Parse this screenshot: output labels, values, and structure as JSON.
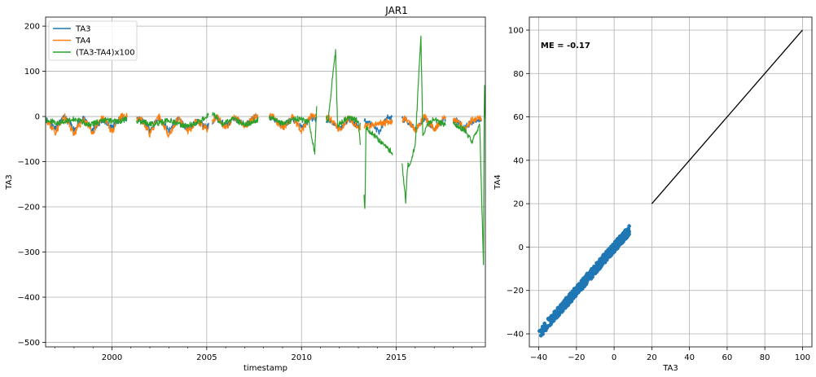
{
  "colors": {
    "ta3": "#1f77b4",
    "ta4": "#ff7f0e",
    "diff": "#2ca02c",
    "line": "#000000",
    "grid": "#b0b0b0"
  },
  "chart_data": [
    {
      "type": "line",
      "title": "JAR1",
      "xlabel": "timestamp",
      "ylabel": "TA3",
      "xlim": [
        1996.5,
        2019.7
      ],
      "ylim": [
        -510,
        220
      ],
      "xticks": [
        2000,
        2005,
        2010,
        2015
      ],
      "xtick_labels": [
        "2000",
        "2005",
        "2010",
        "2015"
      ],
      "yticks": [
        -500,
        -400,
        -300,
        -200,
        -100,
        0,
        100,
        200
      ],
      "ytick_labels": [
        "−500",
        "−400",
        "−300",
        "−200",
        "−100",
        "0",
        "100",
        "200"
      ],
      "grid": true,
      "legend_position": "top-left",
      "segments": [
        [
          1996.5,
          2000.8
        ],
        [
          2001.3,
          2005.1
        ],
        [
          2005.3,
          2007.7
        ],
        [
          2008.3,
          2010.8
        ],
        [
          2011.3,
          2013.1
        ],
        [
          2013.3,
          2014.8
        ],
        [
          2015.3,
          2017.6
        ],
        [
          2018.0,
          2019.7
        ]
      ],
      "series": [
        {
          "name": "TA3",
          "color": "#1f77b4",
          "x": [
            1996.5,
            1997.0,
            1997.5,
            1998.0,
            1998.5,
            1999.0,
            1999.5,
            2000.0,
            2000.5,
            2001.5,
            2002.0,
            2002.5,
            2003.0,
            2003.5,
            2004.0,
            2004.5,
            2005.0,
            2005.5,
            2006.0,
            2006.5,
            2007.0,
            2007.5,
            2008.5,
            2009.0,
            2009.5,
            2010.0,
            2010.5,
            2011.5,
            2012.0,
            2012.5,
            2013.0,
            2013.4,
            2013.8,
            2014.1,
            2014.5,
            2015.5,
            2016.0,
            2016.5,
            2017.0,
            2017.5,
            2018.2,
            2018.6,
            2019.0,
            2019.5
          ],
          "y": [
            -5,
            -25,
            -2,
            -28,
            -5,
            -30,
            -8,
            -24,
            -3,
            -6,
            -30,
            -2,
            -33,
            -5,
            -28,
            -10,
            -25,
            -3,
            -20,
            -5,
            -18,
            -2,
            -3,
            -22,
            -5,
            -25,
            -4,
            -8,
            -28,
            -5,
            -22,
            -8,
            -20,
            -35,
            -2,
            -8,
            -30,
            -3,
            -28,
            -5,
            -10,
            -24,
            -12,
            -6
          ]
        },
        {
          "name": "TA4",
          "color": "#ff7f0e",
          "x": [
            1996.5,
            1997.0,
            1997.5,
            1998.0,
            1998.5,
            1999.0,
            1999.5,
            2000.0,
            2000.5,
            2001.5,
            2002.0,
            2002.5,
            2003.0,
            2003.5,
            2004.0,
            2004.5,
            2005.0,
            2005.5,
            2006.0,
            2006.5,
            2007.0,
            2007.5,
            2008.5,
            2009.0,
            2009.5,
            2010.0,
            2010.5,
            2011.5,
            2012.0,
            2012.5,
            2013.0,
            2015.5,
            2016.0,
            2016.5,
            2017.0,
            2017.5,
            2018.2,
            2018.6,
            2019.0,
            2019.5
          ],
          "y": [
            -5,
            -35,
            0,
            -38,
            -5,
            -36,
            -3,
            -32,
            0,
            -3,
            -38,
            0,
            -40,
            -5,
            -34,
            -8,
            -30,
            0,
            -25,
            -2,
            -22,
            0,
            0,
            -28,
            -2,
            -30,
            0,
            -5,
            -30,
            -2,
            -25,
            -5,
            -32,
            0,
            -30,
            -3,
            -8,
            -25,
            -8,
            -3
          ]
        },
        {
          "name": "(TA3-TA4)x100",
          "color": "#2ca02c",
          "x": [
            1996.5,
            1997.2,
            1998.0,
            1998.8,
            1999.6,
            2000.4,
            2000.8,
            2001.4,
            2002.2,
            2003.0,
            2003.8,
            2004.6,
            2005.1,
            2005.3,
            2005.8,
            2006.4,
            2007.0,
            2007.6,
            2008.3,
            2009.0,
            2009.8,
            2010.4,
            2010.7,
            2010.8,
            2011.4,
            2011.7,
            2011.8,
            2011.9,
            2012.5,
            2013.0,
            2013.35,
            2013.4,
            2015.3,
            2015.5,
            2015.6,
            2015.8,
            2016.0,
            2016.3,
            2016.4,
            2016.6,
            2017.0,
            2017.5,
            2018.0,
            2018.6,
            2019.0,
            2019.4,
            2019.6,
            2019.65,
            2019.7
          ],
          "y": [
            -8,
            -15,
            -5,
            -18,
            -8,
            -12,
            -5,
            -10,
            -18,
            -8,
            -22,
            -12,
            5,
            8,
            -18,
            -5,
            -20,
            -8,
            -2,
            -15,
            -5,
            -12,
            -80,
            25,
            -10,
            110,
            148,
            -20,
            0,
            -10,
            -205,
            -25,
            -100,
            -190,
            -110,
            -95,
            -60,
            180,
            -40,
            -20,
            -5,
            -18,
            -15,
            -30,
            -55,
            -20,
            -330,
            90,
            0
          ]
        }
      ]
    },
    {
      "type": "scatter",
      "xlabel": "TA3",
      "ylabel": "TA4",
      "xlim": [
        -45,
        105
      ],
      "ylim": [
        -46,
        106
      ],
      "xticks": [
        -40,
        -20,
        0,
        20,
        40,
        60,
        80,
        100
      ],
      "xtick_labels": [
        "−40",
        "−20",
        "0",
        "20",
        "40",
        "60",
        "80",
        "100"
      ],
      "yticks": [
        -40,
        -20,
        0,
        20,
        40,
        60,
        80,
        100
      ],
      "ytick_labels": [
        "−40",
        "−20",
        "0",
        "20",
        "40",
        "60",
        "80",
        "100"
      ],
      "grid": true,
      "annotation": "ME = -0.17",
      "scatter_series": {
        "name": "TA3 vs TA4",
        "color": "#1f77b4",
        "x_range": [
          -40,
          8
        ],
        "relation": "y = x, small scatter"
      },
      "reference_line": {
        "x": [
          20,
          100
        ],
        "y": [
          20,
          100
        ],
        "color": "#000000"
      }
    }
  ]
}
